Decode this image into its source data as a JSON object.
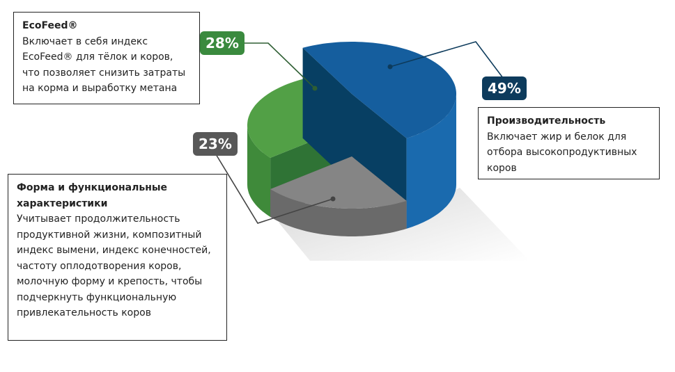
{
  "chart_data": {
    "type": "pie",
    "style": "3d-stepped",
    "slices": [
      {
        "label": "Производительность",
        "value": 49,
        "value_label": "49%",
        "color": "#155e9e",
        "description": "Включает жир и белок для отбора высокопродуктивных коров"
      },
      {
        "label": "Форма и функциональные характеристики",
        "value": 23,
        "value_label": "23%",
        "color": "#858585",
        "description": "Учитывает продолжительность продуктивной жизни, композитный индекс вымени, индекс конечностей, частоту оплодотворения коров, молочную форму и крепость, чтобы подчеркнуть функциональную привлекательность коров"
      },
      {
        "label": "EcoFeed®",
        "value": 28,
        "value_label": "28%",
        "color": "#52a046",
        "description": "Включает в себя индекс EcoFeed® для тёлок и коров, что позволяет снизить затраты на корма и выработку метана"
      }
    ]
  }
}
